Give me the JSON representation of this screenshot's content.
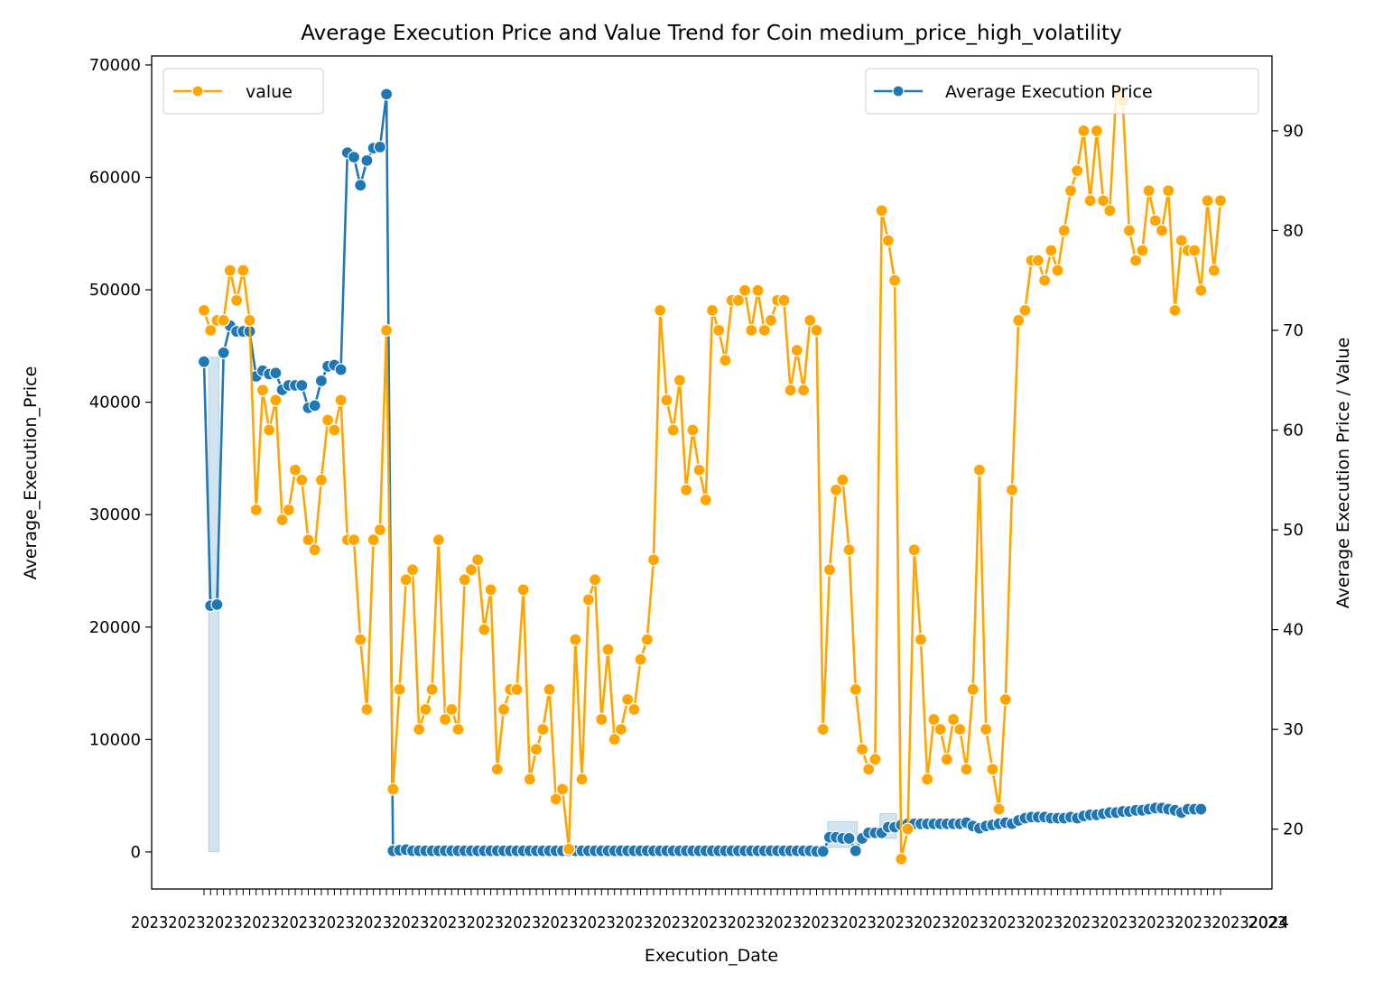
{
  "chart_data": {
    "type": "line",
    "title": "Average Execution Price and Value Trend for Coin medium_price_high_volatility",
    "xlabel": "Execution_Date",
    "ylabel_left": "Average_Execution_Price",
    "ylabel_right": "Average Execution Price / Value",
    "ylim_left": [
      -3300,
      70800
    ],
    "ylim_right": [
      14.0,
      97.5
    ],
    "yticks_left": [
      0,
      10000,
      20000,
      30000,
      40000,
      50000,
      60000,
      70000
    ],
    "yticks_right": [
      20,
      30,
      40,
      50,
      60,
      70,
      80,
      90
    ],
    "x_tick_labels": "overlapping, illegible date labels",
    "x_end_label": "2024",
    "grid": false,
    "legend_left": {
      "placement": "upper-left",
      "label": "value",
      "color": "#ffa500"
    },
    "legend_right": {
      "placement": "upper-right",
      "label": "Average Execution Price",
      "color": "#1f77b4"
    },
    "series": [
      {
        "name": "value",
        "axis": "right",
        "color": "#ffa500",
        "values": [
          72,
          70,
          71,
          71,
          76,
          73,
          76,
          71,
          52,
          64,
          60,
          63,
          51,
          52,
          56,
          55,
          49,
          48,
          55,
          61,
          60,
          63,
          49,
          49,
          39,
          32,
          49,
          50,
          70,
          24,
          34,
          45,
          46,
          30,
          32,
          34,
          49,
          31,
          32,
          30,
          45,
          46,
          47,
          40,
          44,
          26,
          32,
          34,
          34,
          44,
          25,
          28,
          30,
          34,
          23,
          24,
          18,
          39,
          25,
          43,
          45,
          31,
          38,
          29,
          30,
          33,
          32,
          37,
          39,
          47,
          72,
          63,
          60,
          65,
          54,
          60,
          56,
          53,
          72,
          70,
          67,
          73,
          73,
          74,
          70,
          74,
          70,
          71,
          73,
          73,
          64,
          68,
          64,
          71,
          70,
          30,
          46,
          54,
          55,
          48,
          34,
          28,
          26,
          27,
          82,
          79,
          75,
          17,
          20,
          48,
          39,
          25,
          31,
          30,
          27,
          31,
          30,
          26,
          34,
          56,
          30,
          26,
          22,
          33,
          54,
          71,
          72,
          77,
          77,
          75,
          78,
          76,
          80,
          84,
          86,
          90,
          83,
          90,
          83,
          82,
          94,
          93,
          80,
          77,
          78,
          84,
          81,
          80,
          84,
          72,
          79,
          78,
          78,
          74,
          83,
          76,
          83
        ]
      },
      {
        "name": "Average Execution Price",
        "axis": "left",
        "color": "#1f77b4",
        "values": [
          43600,
          21900,
          22000,
          44400,
          46800,
          46300,
          46300,
          46300,
          42300,
          42800,
          42500,
          42600,
          41100,
          41500,
          41500,
          41500,
          39500,
          39700,
          41900,
          43200,
          43300,
          42900,
          62200,
          61800,
          59300,
          61500,
          62600,
          62700,
          67400,
          100,
          150,
          200,
          100,
          100,
          100,
          100,
          100,
          100,
          100,
          100,
          100,
          100,
          100,
          100,
          100,
          100,
          100,
          100,
          100,
          100,
          100,
          100,
          100,
          100,
          100,
          100,
          100,
          100,
          100,
          100,
          100,
          100,
          100,
          100,
          100,
          100,
          100,
          100,
          100,
          100,
          100,
          100,
          100,
          100,
          100,
          100,
          100,
          100,
          100,
          100,
          100,
          100,
          100,
          100,
          100,
          100,
          100,
          100,
          100,
          100,
          100,
          100,
          100,
          100,
          50,
          50,
          1300,
          1300,
          1200,
          1200,
          100,
          1200,
          1700,
          1700,
          1700,
          2200,
          2200,
          2400,
          2500,
          2500,
          2500,
          2500,
          2500,
          2500,
          2500,
          2500,
          2500,
          2600,
          2300,
          2100,
          2300,
          2400,
          2500,
          2600,
          2500,
          2800,
          3000,
          3100,
          3100,
          3100,
          3000,
          3000,
          3000,
          3100,
          3000,
          3200,
          3300,
          3300,
          3400,
          3500,
          3500,
          3600,
          3600,
          3700,
          3700,
          3800,
          3900,
          3900,
          3800,
          3700,
          3500,
          3800,
          3800,
          3800
        ]
      }
    ],
    "uncertainty_bands": [
      {
        "series": "Average Execution Price",
        "x_range_index": [
          1,
          2
        ],
        "y_range": [
          0,
          44000
        ]
      },
      {
        "series": "Average Execution Price",
        "x_range_index": [
          96,
          100
        ],
        "y_range": [
          400,
          2700
        ]
      },
      {
        "series": "Average Execution Price",
        "x_range_index": [
          104,
          106
        ],
        "y_range": [
          1200,
          3400
        ]
      }
    ]
  }
}
